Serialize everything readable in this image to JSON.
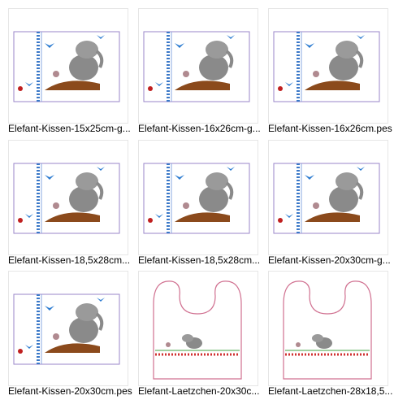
{
  "files": [
    {
      "name": "Elefant-Kissen-15x25cm-g..."
    },
    {
      "name": "Elefant-Kissen-16x26cm-g..."
    },
    {
      "name": "Elefant-Kissen-16x26cm.pes"
    },
    {
      "name": "Elefant-Kissen-18,5x28cm..."
    },
    {
      "name": "Elefant-Kissen-18,5x28cm..."
    },
    {
      "name": "Elefant-Kissen-20x30cm-g..."
    },
    {
      "name": "Elefant-Kissen-20x30cm.pes"
    },
    {
      "name": "Elefant-Laetzchen-20x30c..."
    },
    {
      "name": "Elefant-Laetzchen-28x18,5..."
    }
  ]
}
